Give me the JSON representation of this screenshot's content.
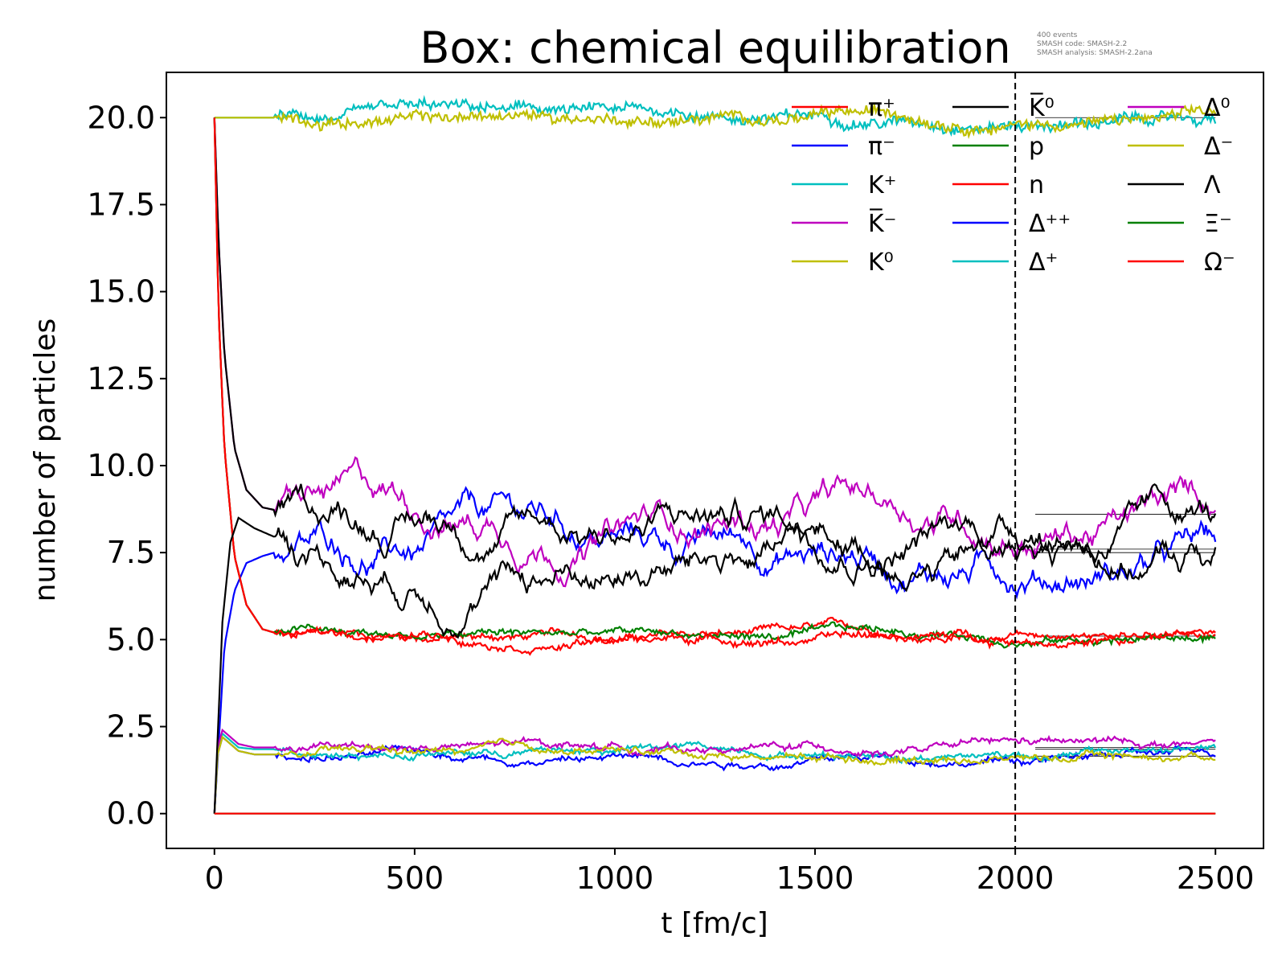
{
  "chart_data": {
    "type": "line",
    "title": "Box: chemical equilibration",
    "annotation_lines": [
      "400 events",
      "SMASH code:      SMASH-2.2",
      "SMASH analysis:  SMASH-2.2ana"
    ],
    "xlabel": "t [fm/c]",
    "ylabel": "number of particles",
    "xlim": [
      -120,
      2620
    ],
    "ylim": [
      -1.0,
      21.3
    ],
    "xticks": [
      0,
      500,
      1000,
      1500,
      2000,
      2500
    ],
    "xtick_labels": [
      "0",
      "500",
      "1000",
      "1500",
      "2000",
      "2500"
    ],
    "yticks": [
      0.0,
      2.5,
      5.0,
      7.5,
      10.0,
      12.5,
      15.0,
      17.5,
      20.0
    ],
    "ytick_labels": [
      "0.0",
      "2.5",
      "5.0",
      "7.5",
      "10.0",
      "12.5",
      "15.0",
      "17.5",
      "20.0"
    ],
    "vline_x": 2000,
    "grid": false,
    "legend_position": "upper right",
    "series": [
      {
        "name": "π⁺",
        "color": "#ff0000",
        "t": [
          0,
          10,
          25,
          50,
          80,
          120,
          180,
          300,
          2500
        ],
        "y": [
          20.0,
          14.5,
          10.5,
          7.4,
          6.0,
          5.3,
          5.1,
          5.1,
          5.1
        ]
      },
      {
        "name": "π⁻",
        "color": "#0000ff",
        "t": [
          0,
          25,
          50,
          80,
          120,
          180,
          300,
          2500
        ],
        "y": [
          0.0,
          4.8,
          6.4,
          7.2,
          7.4,
          7.6,
          7.65,
          7.55
        ]
      },
      {
        "name": "K⁺",
        "color": "#00bfbf",
        "t": [
          0,
          2500
        ],
        "y": [
          20.0,
          20.0
        ]
      },
      {
        "name": "K̅⁻",
        "color": "#bf00bf",
        "t": [
          0,
          10,
          25,
          50,
          80,
          120,
          180,
          300,
          2500
        ],
        "y": [
          20.0,
          16.5,
          13.2,
          10.5,
          9.3,
          8.8,
          8.65,
          8.65,
          8.6
        ]
      },
      {
        "name": "K⁰",
        "color": "#bfbf00",
        "t": [
          0,
          2500
        ],
        "y": [
          20.0,
          20.0
        ]
      },
      {
        "name": "K̅⁰",
        "color": "#000000",
        "t": [
          0,
          10,
          25,
          50,
          80,
          120,
          180,
          300,
          2500
        ],
        "y": [
          20.0,
          16.5,
          13.2,
          10.5,
          9.3,
          8.8,
          8.65,
          8.65,
          8.6
        ]
      },
      {
        "name": "p",
        "color": "#008000",
        "t": [
          0,
          10,
          25,
          50,
          80,
          120,
          180,
          300,
          2500
        ],
        "y": [
          20.0,
          14.5,
          10.5,
          7.4,
          6.0,
          5.3,
          5.1,
          5.1,
          5.1
        ]
      },
      {
        "name": "n",
        "color": "#ff0000",
        "t": [
          0,
          10,
          25,
          50,
          80,
          120,
          180,
          300,
          2500
        ],
        "y": [
          20.0,
          14.5,
          10.5,
          7.4,
          6.0,
          5.3,
          5.1,
          5.1,
          5.1
        ]
      },
      {
        "name": "Δ⁺⁺",
        "color": "#0000ff",
        "t": [
          0,
          8,
          20,
          40,
          60,
          100,
          2500
        ],
        "y": [
          0.0,
          1.7,
          2.2,
          2.0,
          1.8,
          1.7,
          1.65
        ]
      },
      {
        "name": "Δ⁺",
        "color": "#00bfbf",
        "t": [
          0,
          8,
          20,
          40,
          60,
          100,
          2500
        ],
        "y": [
          0.0,
          1.8,
          2.3,
          2.1,
          1.9,
          1.85,
          1.85
        ]
      },
      {
        "name": "Δ⁰",
        "color": "#bf00bf",
        "t": [
          0,
          8,
          20,
          40,
          60,
          100,
          2500
        ],
        "y": [
          0.0,
          1.9,
          2.4,
          2.2,
          2.0,
          1.9,
          1.9
        ]
      },
      {
        "name": "Δ⁻",
        "color": "#bfbf00",
        "t": [
          0,
          8,
          20,
          40,
          60,
          100,
          2500
        ],
        "y": [
          0.0,
          1.7,
          2.2,
          2.0,
          1.8,
          1.7,
          1.7
        ]
      },
      {
        "name": "Λ",
        "color": "#000000",
        "t": [
          0,
          20,
          40,
          60,
          100,
          180,
          300,
          500,
          1000,
          1500,
          2500
        ],
        "y": [
          0.0,
          5.5,
          7.8,
          8.5,
          8.2,
          7.8,
          7.4,
          7.3,
          7.5,
          7.5,
          7.5
        ]
      },
      {
        "name": "Ξ⁻",
        "color": "#008000",
        "t": [
          0,
          2500
        ],
        "y": [
          0.0,
          0.0
        ]
      },
      {
        "name": "Ω⁻",
        "color": "#ff0000",
        "t": [
          0,
          2500
        ],
        "y": [
          0.0,
          0.0
        ]
      }
    ],
    "equilibrium_levels": [
      20.0,
      8.6,
      7.6,
      7.5,
      5.1,
      1.9,
      1.85,
      1.65,
      0.0
    ]
  }
}
